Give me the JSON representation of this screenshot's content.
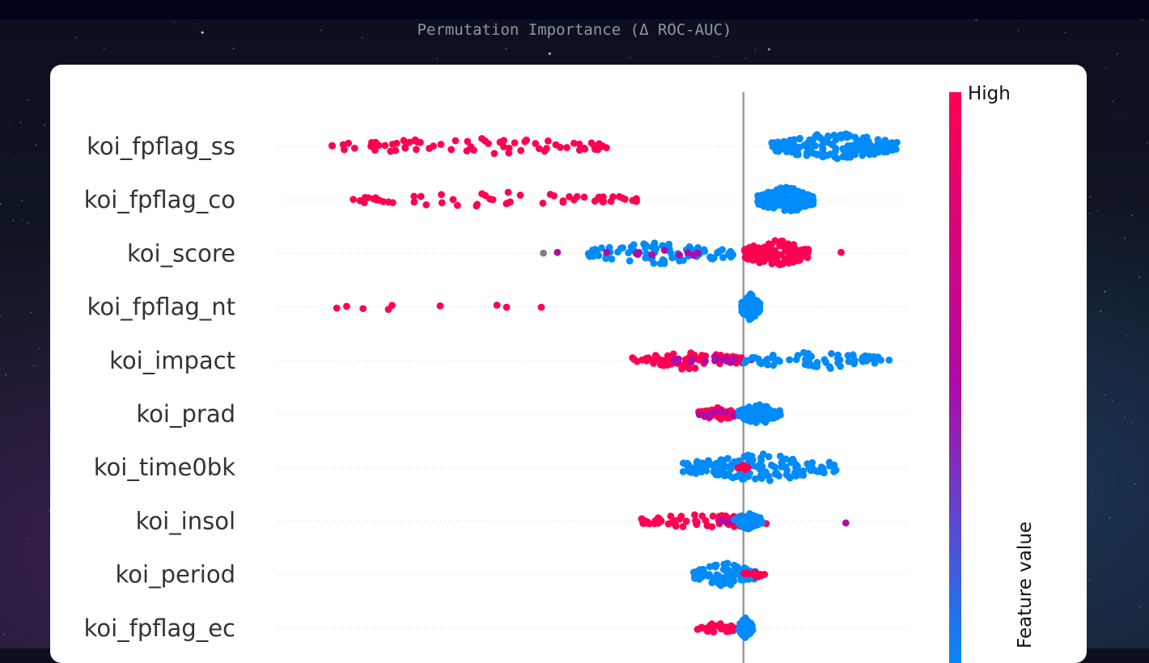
{
  "page": {
    "title": "Permutation Importance (Δ ROC-AUC)"
  },
  "colors": {
    "high": "#ff0052",
    "low": "#008bfb",
    "mid": "#b10aa8",
    "gray": "#808080",
    "baseline": "#999999"
  },
  "chart_data": {
    "type": "scatter",
    "subtype": "beeswarm",
    "xlim": [
      -1.0,
      0.35
    ],
    "baseline_x": 0,
    "colorbar": {
      "label": "Feature value",
      "high_label": "High"
    },
    "features": [
      {
        "name": "koi_fpflag_ss",
        "points": [
          {
            "x_min": -0.9,
            "x_max": -0.28,
            "n": 70,
            "c": "high"
          },
          {
            "x_min": 0.06,
            "x_max": 0.33,
            "n": 170,
            "c": "low"
          }
        ]
      },
      {
        "name": "koi_fpflag_co",
        "points": [
          {
            "x_min": -0.84,
            "x_max": -0.2,
            "n": 55,
            "c": "high"
          },
          {
            "x_min": 0.03,
            "x_max": 0.15,
            "n": 150,
            "c": "low"
          }
        ]
      },
      {
        "name": "koi_score",
        "points": [
          {
            "x_min": -0.43,
            "x_max": -0.43,
            "n": 1,
            "c": "gray"
          },
          {
            "x_min": -0.4,
            "x_max": -0.4,
            "n": 1,
            "c": "mid"
          },
          {
            "x_min": -0.35,
            "x_max": -0.02,
            "n": 90,
            "c": "low"
          },
          {
            "x_min": -0.3,
            "x_max": -0.05,
            "n": 10,
            "c": "mid"
          },
          {
            "x_min": 0.0,
            "x_max": 0.14,
            "n": 130,
            "c": "high"
          },
          {
            "x_min": 0.21,
            "x_max": 0.21,
            "n": 1,
            "c": "high"
          }
        ]
      },
      {
        "name": "koi_fpflag_nt",
        "points": [
          {
            "x_min": -0.92,
            "x_max": -0.42,
            "n": 9,
            "c": "high"
          },
          {
            "x_min": -0.005,
            "x_max": 0.035,
            "n": 120,
            "c": "low"
          }
        ]
      },
      {
        "name": "koi_impact",
        "points": [
          {
            "x_min": -0.24,
            "x_max": 0.0,
            "n": 70,
            "c": "high"
          },
          {
            "x_min": -0.15,
            "x_max": 0.02,
            "n": 20,
            "c": "mid"
          },
          {
            "x_min": 0.0,
            "x_max": 0.32,
            "n": 70,
            "c": "low"
          }
        ]
      },
      {
        "name": "koi_prad",
        "points": [
          {
            "x_min": -0.1,
            "x_max": -0.01,
            "n": 40,
            "c": "high"
          },
          {
            "x_min": -0.1,
            "x_max": 0.0,
            "n": 12,
            "c": "mid"
          },
          {
            "x_min": -0.01,
            "x_max": 0.08,
            "n": 90,
            "c": "low"
          }
        ]
      },
      {
        "name": "koi_time0bk",
        "points": [
          {
            "x_min": -0.13,
            "x_max": 0.2,
            "n": 140,
            "c": "low"
          },
          {
            "x_min": -0.02,
            "x_max": 0.02,
            "n": 8,
            "c": "high"
          }
        ]
      },
      {
        "name": "koi_insol",
        "points": [
          {
            "x_min": -0.22,
            "x_max": 0.06,
            "n": 60,
            "c": "high"
          },
          {
            "x_min": -0.05,
            "x_max": 0.04,
            "n": 15,
            "c": "mid"
          },
          {
            "x_min": -0.02,
            "x_max": 0.04,
            "n": 60,
            "c": "low"
          },
          {
            "x_min": 0.22,
            "x_max": 0.22,
            "n": 1,
            "c": "mid"
          }
        ]
      },
      {
        "name": "koi_period",
        "points": [
          {
            "x_min": -0.11,
            "x_max": 0.03,
            "n": 100,
            "c": "low"
          },
          {
            "x_min": 0.0,
            "x_max": 0.05,
            "n": 12,
            "c": "high"
          }
        ]
      },
      {
        "name": "koi_fpflag_ec",
        "points": [
          {
            "x_min": -0.1,
            "x_max": -0.01,
            "n": 30,
            "c": "high"
          },
          {
            "x_min": -0.01,
            "x_max": 0.02,
            "n": 90,
            "c": "low"
          }
        ]
      }
    ]
  }
}
